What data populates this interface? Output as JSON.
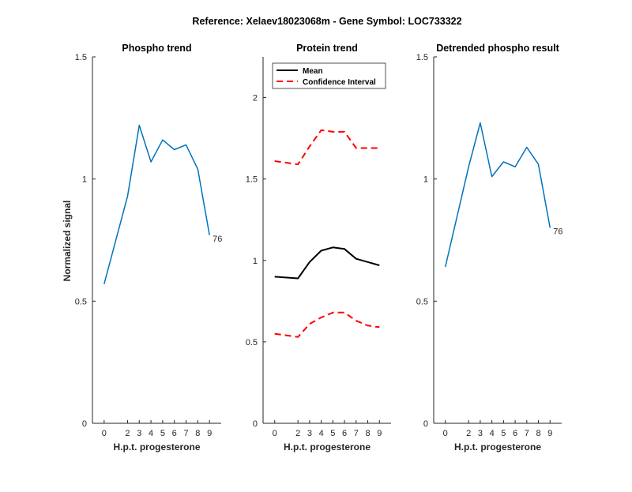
{
  "figure": {
    "suptitle": "Reference:  Xelaev18023068m - Gene Symbol:  LOC733322",
    "ylabel": "Normalized signal",
    "xlabel": "H.p.t. progesterone"
  },
  "chart_data": [
    {
      "type": "line",
      "title": "Phospho trend",
      "xlabel": "H.p.t. progesterone",
      "ylabel": "Normalized signal",
      "categories": [
        "0",
        "2",
        "3",
        "4",
        "5",
        "6",
        "7",
        "8",
        "9"
      ],
      "ylim": [
        0,
        1.5
      ],
      "yticks": [
        "0",
        "0.5",
        "1",
        "1.5"
      ],
      "series": [
        {
          "color": "#0072BD",
          "style": "solid",
          "values": [
            0.57,
            0.93,
            1.22,
            1.07,
            1.16,
            1.12,
            1.14,
            1.04,
            0.77
          ]
        }
      ],
      "end_label": "76",
      "grid": false
    },
    {
      "type": "line",
      "title": "Protein trend",
      "xlabel": "H.p.t. progesterone",
      "categories": [
        "0",
        "2",
        "3",
        "4",
        "5",
        "6",
        "7",
        "8",
        "9"
      ],
      "ylim": [
        0,
        2.25
      ],
      "yticks": [
        "0",
        "0.5",
        "1",
        "1.5",
        "2"
      ],
      "legend": {
        "placement": "top-left"
      },
      "series": [
        {
          "name": "Mean",
          "color": "#000000",
          "style": "solid",
          "values": [
            0.9,
            0.89,
            0.99,
            1.06,
            1.08,
            1.07,
            1.01,
            0.99,
            0.97
          ]
        },
        {
          "name": "Confidence Interval",
          "color": "#FF0000",
          "style": "dashed",
          "values": [
            1.61,
            1.59,
            1.7,
            1.8,
            1.79,
            1.79,
            1.69,
            1.69,
            1.69
          ]
        },
        {
          "name": "",
          "color": "#FF0000",
          "style": "dashed",
          "values": [
            0.55,
            0.53,
            0.61,
            0.65,
            0.68,
            0.68,
            0.63,
            0.6,
            0.59
          ]
        }
      ],
      "grid": false
    },
    {
      "type": "line",
      "title": "Detrended phospho result",
      "xlabel": "H.p.t. progesterone",
      "categories": [
        "0",
        "2",
        "3",
        "4",
        "5",
        "6",
        "7",
        "8",
        "9"
      ],
      "ylim": [
        0,
        1.5
      ],
      "yticks": [
        "0",
        "0.5",
        "1",
        "1.5"
      ],
      "series": [
        {
          "color": "#0072BD",
          "style": "solid",
          "values": [
            0.64,
            1.05,
            1.23,
            1.01,
            1.07,
            1.05,
            1.13,
            1.06,
            0.8
          ]
        }
      ],
      "end_label": "76",
      "grid": false
    }
  ]
}
